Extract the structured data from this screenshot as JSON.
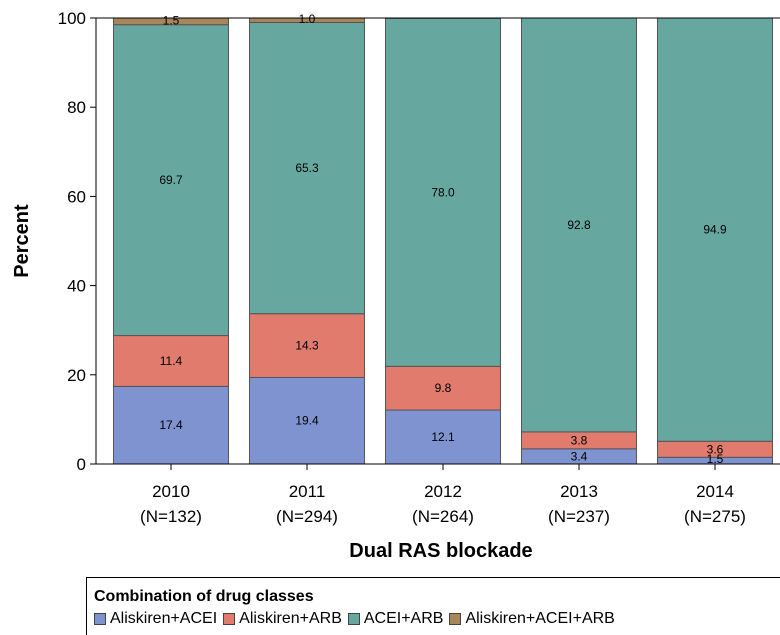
{
  "chart_data": {
    "type": "bar",
    "stacked": true,
    "xlabel": "Dual RAS blockade",
    "ylabel": "Percent",
    "ylim": [
      0,
      100
    ],
    "yticks": [
      0,
      20,
      40,
      60,
      80,
      100
    ],
    "categories": [
      {
        "year": "2010",
        "n": "(N=132)"
      },
      {
        "year": "2011",
        "n": "(N=294)"
      },
      {
        "year": "2012",
        "n": "(N=264)"
      },
      {
        "year": "2013",
        "n": "(N=237)"
      },
      {
        "year": "2014",
        "n": "(N=275)"
      }
    ],
    "series": [
      {
        "name": "Aliskiren+ACEI",
        "color": "#7f93d0",
        "values": [
          17.4,
          19.4,
          12.1,
          3.4,
          1.5
        ],
        "labels": [
          "17.4",
          "19.4",
          "12.1",
          "3.4",
          "1.5"
        ]
      },
      {
        "name": "Aliskiren+ARB",
        "color": "#e07b6e",
        "values": [
          11.4,
          14.3,
          9.8,
          3.8,
          3.6
        ],
        "labels": [
          "11.4",
          "14.3",
          "9.8",
          "3.8",
          "3.6"
        ]
      },
      {
        "name": "ACEI+ARB",
        "color": "#66a8a0",
        "values": [
          69.7,
          65.3,
          78.0,
          92.8,
          94.9
        ],
        "labels": [
          "69.7",
          "65.3",
          "78.0",
          "92.8",
          "94.9"
        ]
      },
      {
        "name": "Aliskiren+ACEI+ARB",
        "color": "#a9865a",
        "values": [
          1.5,
          1.0,
          0,
          0,
          0
        ],
        "labels": [
          "1.5",
          "1.0",
          "",
          "",
          ""
        ]
      }
    ],
    "legend": {
      "title": "Combination of drug classes",
      "placement": "bottom"
    }
  }
}
